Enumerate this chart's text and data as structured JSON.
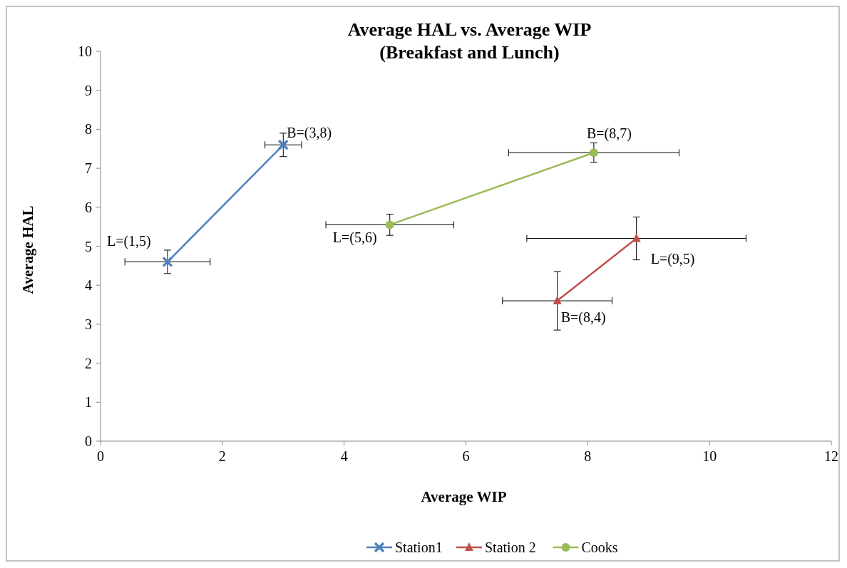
{
  "chart_data": {
    "type": "line",
    "title": "Average HAL vs. Average WIP\n(Breakfast and Lunch)",
    "xlabel": "Average WIP",
    "ylabel": "Average HAL",
    "xlim": [
      0,
      12
    ],
    "xticks": [
      0,
      2,
      4,
      6,
      8,
      10,
      12
    ],
    "ylim": [
      0,
      10
    ],
    "yticks": [
      0,
      1,
      2,
      3,
      4,
      5,
      6,
      7,
      8,
      9,
      10
    ],
    "grid": false,
    "legend": "bottom",
    "series": [
      {
        "name": "Station1",
        "color": "#4f81bd",
        "marker": "cross",
        "x": [
          1.1,
          3.0
        ],
        "values": [
          4.6,
          7.6
        ],
        "errors": [
          0.3,
          0.3
        ],
        "xerrors": [
          0.7,
          0.3
        ]
      },
      {
        "name": "Station 2",
        "color": "#c0504d",
        "marker": "triangle",
        "x": [
          7.5,
          8.8
        ],
        "values": [
          3.6,
          5.2
        ],
        "errors": [
          0.75,
          0.55
        ],
        "xerrors": [
          0.9,
          1.8
        ]
      },
      {
        "name": "Cooks",
        "color": "#9bbb59",
        "marker": "circle",
        "x": [
          4.75,
          8.1
        ],
        "values": [
          5.55,
          7.4
        ],
        "errors": [
          0.27,
          0.25
        ],
        "xerrors": [
          1.05,
          1.4
        ]
      }
    ],
    "annotations": [
      {
        "text": "L=(1,5)",
        "x": 1.1,
        "y": 4.6
      },
      {
        "text": "B=(3,8)",
        "x": 3.0,
        "y": 7.6
      },
      {
        "text": "B=(8,4)",
        "x": 7.5,
        "y": 3.6
      },
      {
        "text": "L=(9,5)",
        "x": 8.8,
        "y": 5.2
      },
      {
        "text": "L=(5,6)",
        "x": 4.75,
        "y": 5.55
      },
      {
        "text": "B=(8,7)",
        "x": 8.1,
        "y": 7.4
      }
    ]
  }
}
